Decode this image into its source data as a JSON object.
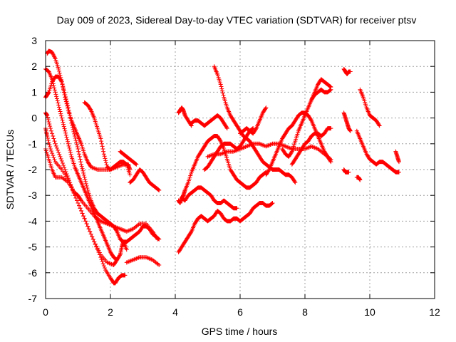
{
  "chart_data": {
    "type": "scatter",
    "title": "Day 009 of 2023, Sidereal Day-to-day VTEC variation (SDTVAR) for receiver ptsv",
    "xlabel": "GPS time / hours",
    "ylabel": "SDTVAR / TECUs",
    "xlim": [
      0,
      12
    ],
    "ylim": [
      -7,
      3
    ],
    "xticks": [
      0,
      2,
      4,
      6,
      8,
      10,
      12
    ],
    "yticks": [
      -7,
      -6,
      -5,
      -4,
      -3,
      -2,
      -1,
      0,
      1,
      2,
      3
    ],
    "grid": true,
    "marker": "+",
    "marker_color": "#ff0000",
    "series": [
      {
        "name": "s1",
        "x": [
          0.0,
          0.05,
          0.15,
          0.3,
          0.5,
          0.7,
          0.9,
          1.1,
          1.3,
          1.5,
          1.7,
          1.9,
          2.1,
          2.2,
          2.3,
          2.35,
          2.4,
          2.5
        ],
        "y": [
          -0.4,
          -0.7,
          -1.2,
          -1.7,
          -2.0,
          -2.4,
          -3.0,
          -3.6,
          -4.2,
          -4.8,
          -5.3,
          -5.6,
          -5.7,
          -5.5,
          -5.3,
          -5.0,
          -4.8,
          -5.1
        ]
      },
      {
        "name": "s2",
        "x": [
          2.5,
          2.7,
          2.9,
          3.1,
          3.3,
          3.5
        ],
        "y": [
          -5.6,
          -5.5,
          -5.4,
          -5.4,
          -5.5,
          -5.7
        ]
      },
      {
        "name": "s3",
        "x": [
          0.0,
          0.05,
          0.15,
          0.3,
          0.45,
          0.6,
          0.75,
          0.9,
          1.1,
          1.3,
          1.5,
          1.7,
          1.85,
          2.0,
          2.1,
          2.15,
          2.25,
          2.35,
          2.45
        ],
        "y": [
          0.2,
          0.1,
          -0.4,
          -1.0,
          -1.5,
          -2.0,
          -2.5,
          -3.0,
          -3.6,
          -4.2,
          -4.8,
          -5.4,
          -5.9,
          -6.2,
          -6.4,
          -6.4,
          -6.2,
          -6.1,
          -6.1
        ]
      },
      {
        "name": "s4",
        "x": [
          0.0,
          0.1,
          0.2,
          0.3,
          0.5,
          0.7,
          0.9,
          1.0,
          1.1,
          1.3,
          1.5,
          1.7,
          1.9,
          2.1,
          2.3,
          2.5,
          2.7,
          2.9,
          3.1,
          3.3,
          3.45
        ],
        "y": [
          -1.2,
          -1.6,
          -2.0,
          -2.3,
          -2.3,
          -2.5,
          -2.9,
          -3.0,
          -3.2,
          -3.5,
          -3.8,
          -4.0,
          -4.1,
          -4.2,
          -4.3,
          -4.4,
          -4.3,
          -4.1,
          -4.1,
          -4.4,
          -4.7
        ]
      },
      {
        "name": "s5",
        "x": [
          0.0,
          0.05,
          0.1,
          0.2,
          0.3,
          0.4,
          0.5,
          0.6,
          0.7,
          0.8,
          0.9,
          1.0,
          1.1,
          1.2,
          1.3,
          1.4,
          1.6,
          1.8,
          2.0,
          2.2,
          2.4,
          2.55,
          2.6
        ],
        "y": [
          0.8,
          0.9,
          1.0,
          1.4,
          1.6,
          1.6,
          1.4,
          0.8,
          0.3,
          -0.1,
          -0.4,
          -0.7,
          -1.0,
          -1.4,
          -1.7,
          -1.9,
          -2.0,
          -2.0,
          -2.0,
          -1.9,
          -1.8,
          -1.8,
          -2.0
        ]
      },
      {
        "name": "s6",
        "x": [
          0.0,
          0.1,
          0.2,
          0.3,
          0.4,
          0.5,
          0.6,
          0.7,
          0.8,
          0.9,
          1.0,
          1.1,
          1.2,
          1.3,
          1.4,
          1.5,
          1.6,
          1.7,
          1.8,
          1.9,
          2.0,
          2.1,
          2.2
        ],
        "y": [
          1.9,
          1.8,
          1.5,
          1.0,
          0.5,
          0.0,
          -0.5,
          -1.0,
          -1.5,
          -1.9,
          -2.2,
          -2.5,
          -2.8,
          -3.1,
          -3.4,
          -3.7,
          -4.0,
          -4.3,
          -4.6,
          -4.9,
          -5.2,
          -5.4,
          -5.5
        ]
      },
      {
        "name": "s7",
        "x": [
          0.05,
          0.1,
          0.2,
          0.3,
          0.4,
          0.5,
          0.6,
          0.7,
          0.8,
          0.9,
          1.0,
          1.1,
          1.2,
          1.3,
          1.4,
          1.5,
          1.6,
          1.7,
          1.8,
          1.9,
          2.0,
          2.1,
          2.2,
          2.3,
          2.4,
          2.5,
          2.6,
          2.7,
          2.8,
          2.9,
          3.0,
          3.1,
          3.2,
          3.3,
          3.4,
          3.5
        ],
        "y": [
          2.5,
          2.6,
          2.55,
          2.3,
          1.9,
          1.4,
          0.9,
          0.4,
          -0.2,
          -0.7,
          -1.2,
          -1.8,
          -2.3,
          -2.8,
          -3.2,
          -3.5,
          -3.7,
          -3.8,
          -3.9,
          -4.0,
          -4.1,
          -4.2,
          -4.4,
          -4.7,
          -4.8,
          -4.8,
          -4.7,
          -4.6,
          -4.5,
          -4.4,
          -4.2,
          -4.2,
          -4.3,
          -4.5,
          -4.6,
          -4.7
        ]
      },
      {
        "name": "s8",
        "x": [
          1.2,
          1.3,
          1.4,
          1.5,
          1.6,
          1.7,
          1.8,
          1.9,
          2.0,
          2.1,
          2.2,
          2.3,
          2.4,
          2.5,
          2.6
        ],
        "y": [
          0.6,
          0.5,
          0.3,
          0.0,
          -0.4,
          -0.8,
          -1.4,
          -1.9,
          -2.0,
          -1.9,
          -1.8,
          -1.7,
          -1.7,
          -1.8,
          -2.2
        ]
      },
      {
        "name": "s9",
        "x": [
          2.3,
          2.4,
          2.5,
          2.6,
          2.7,
          2.8
        ],
        "y": [
          -1.3,
          -1.4,
          -1.5,
          -1.6,
          -1.7,
          -1.8
        ]
      },
      {
        "name": "s10",
        "x": [
          2.6,
          2.7,
          2.8,
          2.9,
          3.0,
          3.1,
          3.2,
          3.3,
          3.4,
          3.5
        ],
        "y": [
          -2.5,
          -2.4,
          -2.2,
          -2.0,
          -2.1,
          -2.3,
          -2.5,
          -2.6,
          -2.7,
          -2.8
        ]
      },
      {
        "name": "s11",
        "x": [
          4.1,
          4.15,
          4.2,
          4.25,
          4.3,
          4.4,
          4.5,
          4.6,
          4.7,
          4.8,
          4.9,
          5.0,
          5.1,
          5.2,
          5.3,
          5.4,
          5.5,
          5.6,
          5.7,
          5.8,
          5.9,
          6.0,
          6.1,
          6.2,
          6.3,
          6.4,
          6.5,
          6.6,
          6.7,
          6.8
        ],
        "y": [
          -3.2,
          -3.3,
          -3.1,
          -3.0,
          -2.8,
          -2.5,
          -2.1,
          -1.8,
          -1.5,
          -1.3,
          -1.1,
          -0.9,
          -0.8,
          -0.7,
          -0.7,
          -0.9,
          -1.2,
          -1.6,
          -2.0,
          -2.2,
          -2.4,
          -2.5,
          -2.6,
          -2.7,
          -2.7,
          -2.6,
          -2.5,
          -2.3,
          -2.2,
          -2.1
        ]
      },
      {
        "name": "s12",
        "x": [
          4.1,
          4.2,
          4.3,
          4.4,
          4.5,
          4.6,
          4.7,
          4.8,
          4.9,
          5.0,
          5.1,
          5.2,
          5.3,
          5.4,
          5.5,
          5.6,
          5.7,
          5.8,
          5.9,
          6.0,
          6.1,
          6.2,
          6.3,
          6.4,
          6.5,
          6.6,
          6.7,
          6.8,
          6.9,
          7.0
        ],
        "y": [
          -5.2,
          -5.0,
          -4.8,
          -4.6,
          -4.4,
          -4.1,
          -3.9,
          -3.8,
          -3.9,
          -4.0,
          -3.9,
          -3.8,
          -3.6,
          -3.7,
          -3.9,
          -4.0,
          -4.0,
          -3.9,
          -3.9,
          -4.0,
          -3.9,
          -3.8,
          -3.7,
          -3.5,
          -3.4,
          -3.3,
          -3.3,
          -3.4,
          -3.4,
          -3.3
        ]
      },
      {
        "name": "s13",
        "x": [
          4.2,
          4.3,
          4.4,
          4.5,
          4.6,
          4.7,
          4.8,
          4.9,
          5.0,
          5.1,
          5.2,
          5.3,
          5.4,
          5.5,
          5.6,
          5.7,
          5.8,
          5.9
        ],
        "y": [
          -3.1,
          -3.2,
          -3.0,
          -2.9,
          -2.8,
          -2.7,
          -2.7,
          -2.8,
          -2.9,
          -3.0,
          -3.2,
          -3.3,
          -3.3,
          -3.2,
          -3.3,
          -3.4,
          -3.5,
          -3.5
        ]
      },
      {
        "name": "s14",
        "x": [
          4.1,
          4.15,
          4.2,
          4.25,
          4.3,
          4.4,
          4.5
        ],
        "y": [
          0.2,
          0.3,
          0.4,
          0.3,
          0.1,
          -0.1,
          -0.3
        ]
      },
      {
        "name": "s15",
        "x": [
          4.9,
          5.0,
          5.1,
          5.2,
          5.3,
          5.4,
          5.5,
          5.6,
          5.7,
          5.8,
          5.9,
          6.0,
          6.1,
          6.2,
          6.3,
          6.4
        ],
        "y": [
          -2.0,
          -1.9,
          -1.7,
          -1.5,
          -1.3,
          -1.1,
          -1.0,
          -1.0,
          -1.0,
          -1.1,
          -1.2,
          -1.1,
          -0.9,
          -0.7,
          -0.5,
          -0.4
        ]
      },
      {
        "name": "s16",
        "x": [
          6.0,
          6.1,
          6.2,
          6.3,
          6.4,
          6.5,
          6.6,
          6.7,
          6.8
        ],
        "y": [
          -0.6,
          -0.5,
          -0.4,
          -0.5,
          -0.6,
          -0.4,
          -0.1,
          0.2,
          0.4
        ]
      },
      {
        "name": "s17",
        "x": [
          4.5,
          4.6,
          4.7,
          4.8,
          4.9,
          5.0,
          5.1,
          5.2,
          5.3,
          5.4,
          5.5,
          5.6
        ],
        "y": [
          -0.2,
          -0.1,
          -0.1,
          -0.2,
          -0.3,
          -0.2,
          -0.1,
          0.0,
          0.1,
          0.0,
          -0.2,
          -0.4
        ]
      },
      {
        "name": "s18",
        "x": [
          5.2,
          5.3,
          5.4,
          5.5,
          5.6,
          5.7,
          5.8,
          5.9,
          6.0,
          6.1,
          6.2,
          6.3,
          6.4,
          6.5,
          6.6,
          6.7,
          6.8,
          6.9,
          7.0,
          7.1,
          7.2,
          7.3,
          7.4,
          7.5,
          7.6,
          7.7
        ],
        "y": [
          2.0,
          1.7,
          1.3,
          0.8,
          0.4,
          0.1,
          -0.1,
          -0.3,
          -0.5,
          -0.7,
          -0.8,
          -0.9,
          -1.1,
          -1.3,
          -1.5,
          -1.7,
          -1.8,
          -1.9,
          -2.0,
          -2.0,
          -2.0,
          -2.1,
          -2.2,
          -2.2,
          -2.3,
          -2.5
        ]
      },
      {
        "name": "s19",
        "x": [
          5.0,
          5.2,
          5.4,
          5.6,
          5.8,
          6.0,
          6.2,
          6.4,
          6.6,
          6.8,
          7.0,
          7.2,
          7.4,
          7.6,
          7.8,
          8.0,
          8.2,
          8.4,
          8.6,
          8.8
        ],
        "y": [
          -1.5,
          -1.4,
          -1.4,
          -1.3,
          -1.3,
          -1.2,
          -1.1,
          -1.0,
          -1.0,
          -1.1,
          -1.0,
          -1.0,
          -1.1,
          -1.2,
          -1.2,
          -1.2,
          -1.1,
          -1.2,
          -1.4,
          -1.6
        ]
      },
      {
        "name": "s20",
        "x": [
          6.8,
          6.9,
          7.0,
          7.1,
          7.2,
          7.3,
          7.4,
          7.5,
          7.6,
          7.7,
          7.8,
          7.9,
          8.0,
          8.1,
          8.2,
          8.3,
          8.4,
          8.5,
          8.6,
          8.7,
          8.8
        ],
        "y": [
          -2.2,
          -2.0,
          -1.7,
          -1.4,
          -1.1,
          -0.8,
          -0.6,
          -0.4,
          -0.3,
          -0.1,
          0.1,
          0.2,
          0.2,
          0.1,
          -0.1,
          -0.4,
          -0.7,
          -1.0,
          -1.3,
          -1.5,
          -1.7
        ]
      },
      {
        "name": "s21",
        "x": [
          7.3,
          7.4,
          7.5,
          7.6,
          7.7,
          7.8,
          7.9,
          8.0,
          8.1,
          8.2,
          8.3,
          8.4,
          8.5,
          8.6,
          8.7,
          8.8
        ],
        "y": [
          -1.2,
          -1.4,
          -1.5,
          -1.3,
          -0.9,
          -0.5,
          -0.2,
          0.1,
          0.4,
          0.7,
          1.0,
          1.3,
          1.5,
          1.4,
          1.3,
          1.2
        ]
      },
      {
        "name": "s22",
        "x": [
          7.6,
          7.7,
          7.8,
          7.9,
          8.0,
          8.1,
          8.2,
          8.3,
          8.4,
          8.5,
          8.6,
          8.7,
          8.8
        ],
        "y": [
          -1.8,
          -1.6,
          -1.4,
          -1.2,
          -1.0,
          -0.9,
          -0.7,
          -0.6,
          -0.6,
          -0.7,
          -0.6,
          -0.4,
          -0.4
        ]
      },
      {
        "name": "s23",
        "x": [
          8.2,
          8.3,
          8.4,
          8.5,
          8.6,
          8.7,
          8.8
        ],
        "y": [
          0.7,
          0.9,
          1.0,
          1.1,
          1.0,
          1.0,
          1.1
        ]
      },
      {
        "name": "s24",
        "x": [
          9.2,
          9.25,
          9.3,
          9.35,
          9.4
        ],
        "y": [
          1.9,
          1.8,
          1.7,
          1.8,
          1.8
        ]
      },
      {
        "name": "s25",
        "x": [
          9.2,
          9.25,
          9.3,
          9.35,
          9.4
        ],
        "y": [
          0.2,
          0.0,
          -0.2,
          -0.4,
          -0.5
        ]
      },
      {
        "name": "s26",
        "x": [
          9.7,
          9.8,
          9.9,
          10.0,
          10.1,
          10.2,
          10.3
        ],
        "y": [
          1.1,
          0.8,
          0.4,
          0.1,
          0.0,
          -0.1,
          -0.3
        ]
      },
      {
        "name": "s27",
        "x": [
          9.6,
          9.7,
          9.8,
          9.9,
          10.0,
          10.1,
          10.2,
          10.3,
          10.4,
          10.5,
          10.6,
          10.7,
          10.8,
          10.9
        ],
        "y": [
          -0.5,
          -0.8,
          -1.1,
          -1.4,
          -1.6,
          -1.7,
          -1.8,
          -1.7,
          -1.7,
          -1.8,
          -1.9,
          -2.0,
          -2.1,
          -2.1
        ]
      },
      {
        "name": "s28",
        "x": [
          9.2,
          9.25,
          9.3,
          9.35
        ],
        "y": [
          -2.0,
          -2.1,
          -2.1,
          -2.1
        ]
      },
      {
        "name": "s29",
        "x": [
          9.6,
          9.65,
          9.7
        ],
        "y": [
          -2.3,
          -2.3,
          -2.4
        ]
      },
      {
        "name": "s30",
        "x": [
          10.8,
          10.85,
          10.9
        ],
        "y": [
          -1.3,
          -1.5,
          -1.7
        ]
      }
    ]
  }
}
